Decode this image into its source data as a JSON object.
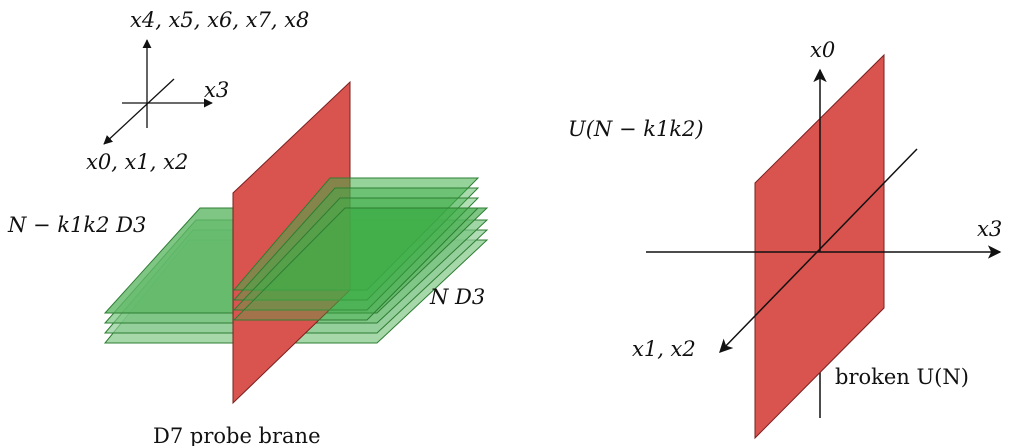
{
  "left_diagram": {
    "axis_labels": {
      "vertical": "x4, x5, x6, x7, x8",
      "horizontal": "x3",
      "diagonal": "x0, x1, x2"
    },
    "d3_stack_label": "N − k1k2 D3",
    "d3_lower_label": "N D3",
    "d7_label": "D7 probe brane",
    "colors": {
      "d3_fill": "#3fae49",
      "d7_fill": "#d9534f",
      "d7_stroke": "#7a1f1f"
    }
  },
  "right_diagram": {
    "axis_labels": {
      "vertical": "x0",
      "horizontal": "x3",
      "diagonal": "x1, x2"
    },
    "unbroken_label": "U(N − k1k2)",
    "broken_label": "broken U(N)",
    "colors": {
      "plane_fill": "#d9534f",
      "plane_stroke": "#7a1f1f"
    }
  }
}
